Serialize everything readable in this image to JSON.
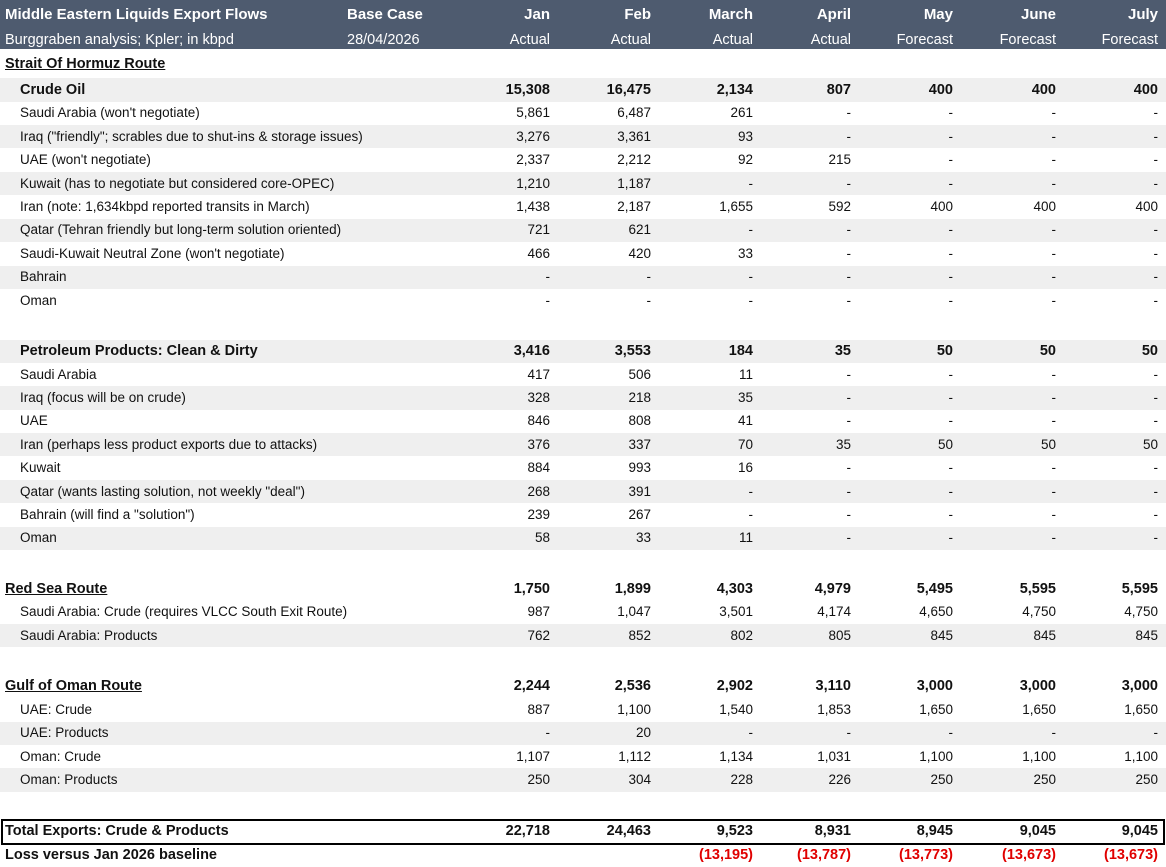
{
  "header": {
    "title": "Middle Eastern Liquids Export Flows",
    "subtitle": "Burggraben analysis; Kpler; in kbpd",
    "case": "Base Case",
    "date": "28/04/2026",
    "months": [
      "Jan",
      "Feb",
      "March",
      "April",
      "May",
      "June",
      "July"
    ],
    "kinds": [
      "Actual",
      "Actual",
      "Actual",
      "Actual",
      "Forecast",
      "Forecast",
      "Forecast"
    ]
  },
  "sections": [
    {
      "title": "Strait Of Hormuz Route",
      "groups": [
        {
          "name": "Crude Oil",
          "values": [
            "15,308",
            "16,475",
            "2,134",
            "807",
            "400",
            "400",
            "400"
          ],
          "rows": [
            {
              "label": "Saudi Arabia (won't negotiate)",
              "values": [
                "5,861",
                "6,487",
                "261",
                "-",
                "-",
                "-",
                "-"
              ]
            },
            {
              "label": "Iraq (\"friendly\"; scrables due to shut-ins & storage issues)",
              "values": [
                "3,276",
                "3,361",
                "93",
                "-",
                "-",
                "-",
                "-"
              ]
            },
            {
              "label": "UAE (won't negotiate)",
              "values": [
                "2,337",
                "2,212",
                "92",
                "215",
                "-",
                "-",
                "-"
              ]
            },
            {
              "label": "Kuwait (has to negotiate but considered core-OPEC)",
              "values": [
                "1,210",
                "1,187",
                "-",
                "-",
                "-",
                "-",
                "-"
              ]
            },
            {
              "label": "Iran (note: 1,634kbpd reported transits in March)",
              "values": [
                "1,438",
                "2,187",
                "1,655",
                "592",
                "400",
                "400",
                "400"
              ]
            },
            {
              "label": "Qatar (Tehran friendly but long-term solution oriented)",
              "values": [
                "721",
                "621",
                "-",
                "-",
                "-",
                "-",
                "-"
              ]
            },
            {
              "label": "Saudi-Kuwait Neutral Zone (won't negotiate)",
              "values": [
                "466",
                "420",
                "33",
                "-",
                "-",
                "-",
                "-"
              ]
            },
            {
              "label": "Bahrain",
              "values": [
                "-",
                "-",
                "-",
                "-",
                "-",
                "-",
                "-"
              ]
            },
            {
              "label": "Oman",
              "values": [
                "-",
                "-",
                "-",
                "-",
                "-",
                "-",
                "-"
              ]
            }
          ]
        },
        {
          "name": "Petroleum Products: Clean & Dirty",
          "values": [
            "3,416",
            "3,553",
            "184",
            "35",
            "50",
            "50",
            "50"
          ],
          "rows": [
            {
              "label": "Saudi Arabia",
              "values": [
                "417",
                "506",
                "11",
                "-",
                "-",
                "-",
                "-"
              ]
            },
            {
              "label": "Iraq (focus will be on crude)",
              "values": [
                "328",
                "218",
                "35",
                "-",
                "-",
                "-",
                "-"
              ]
            },
            {
              "label": "UAE",
              "values": [
                "846",
                "808",
                "41",
                "-",
                "-",
                "-",
                "-"
              ]
            },
            {
              "label": "Iran (perhaps less product exports due to attacks)",
              "values": [
                "376",
                "337",
                "70",
                "35",
                "50",
                "50",
                "50"
              ]
            },
            {
              "label": "Kuwait",
              "values": [
                "884",
                "993",
                "16",
                "-",
                "-",
                "-",
                "-"
              ]
            },
            {
              "label": "Qatar (wants lasting solution, not weekly \"deal\")",
              "values": [
                "268",
                "391",
                "-",
                "-",
                "-",
                "-",
                "-"
              ]
            },
            {
              "label": "Bahrain (will find a \"solution\")",
              "values": [
                "239",
                "267",
                "-",
                "-",
                "-",
                "-",
                "-"
              ]
            },
            {
              "label": "Oman",
              "values": [
                "58",
                "33",
                "11",
                "-",
                "-",
                "-",
                "-"
              ]
            }
          ]
        }
      ]
    },
    {
      "title": "Red Sea Route",
      "values": [
        "1,750",
        "1,899",
        "4,303",
        "4,979",
        "5,495",
        "5,595",
        "5,595"
      ],
      "rows": [
        {
          "label": "Saudi Arabia: Crude (requires VLCC South Exit Route)",
          "values": [
            "987",
            "1,047",
            "3,501",
            "4,174",
            "4,650",
            "4,750",
            "4,750"
          ]
        },
        {
          "label": "Saudi Arabia: Products",
          "values": [
            "762",
            "852",
            "802",
            "805",
            "845",
            "845",
            "845"
          ]
        }
      ]
    },
    {
      "title": "Gulf of Oman Route",
      "values": [
        "2,244",
        "2,536",
        "2,902",
        "3,110",
        "3,000",
        "3,000",
        "3,000"
      ],
      "rows": [
        {
          "label": "UAE: Crude",
          "values": [
            "887",
            "1,100",
            "1,540",
            "1,853",
            "1,650",
            "1,650",
            "1,650"
          ]
        },
        {
          "label": "UAE: Products",
          "values": [
            "-",
            "20",
            "-",
            "-",
            "-",
            "-",
            "-"
          ]
        },
        {
          "label": "Oman: Crude",
          "values": [
            "1,107",
            "1,112",
            "1,134",
            "1,031",
            "1,100",
            "1,100",
            "1,100"
          ]
        },
        {
          "label": "Oman: Products",
          "values": [
            "250",
            "304",
            "228",
            "226",
            "250",
            "250",
            "250"
          ]
        }
      ]
    }
  ],
  "total": {
    "label": "Total Exports: Crude & Products",
    "values": [
      "22,718",
      "24,463",
      "9,523",
      "8,931",
      "8,945",
      "9,045",
      "9,045"
    ]
  },
  "loss": {
    "label": "Loss versus Jan 2026 baseline",
    "values": [
      null,
      null,
      "(13,195)",
      "(13,787)",
      "(13,773)",
      "(13,673)",
      "(13,673)"
    ]
  }
}
